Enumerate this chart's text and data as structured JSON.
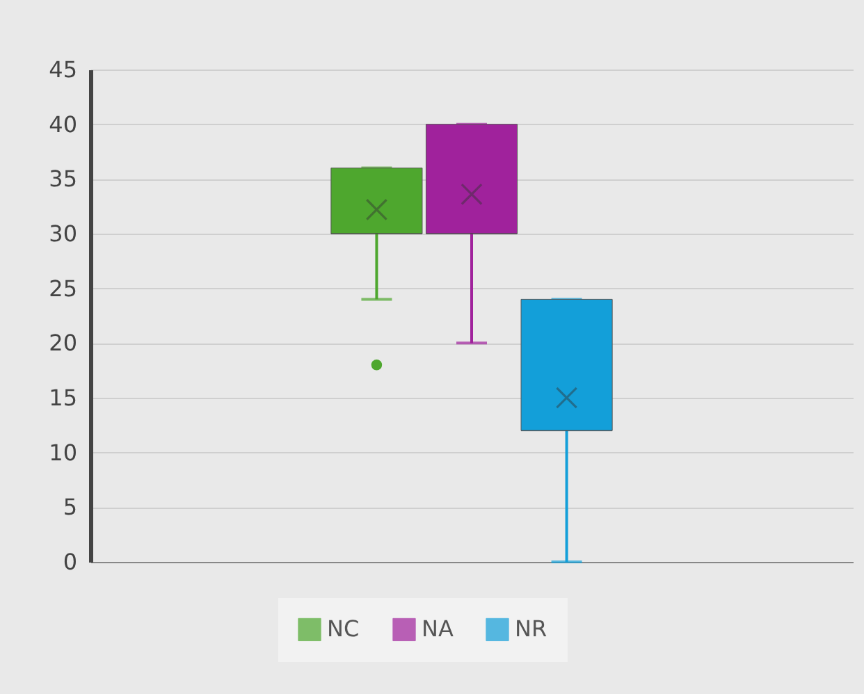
{
  "chart_data": {
    "type": "box",
    "categories": [
      null
    ],
    "series": [
      {
        "name": "NC",
        "color": "#4ea72e",
        "boxes": [
          {
            "low": 24,
            "q1": 30,
            "median": 30,
            "q3": 36,
            "high": 36,
            "mean": 32.2,
            "outliers": [
              18
            ]
          }
        ]
      },
      {
        "name": "NA",
        "color": "#a0229c",
        "boxes": [
          {
            "low": 20,
            "q1": 30,
            "median": 30,
            "q3": 40,
            "high": 40,
            "mean": 33.6
          }
        ]
      },
      {
        "name": "NR",
        "color": "#139fd9",
        "boxes": [
          {
            "low": 0,
            "q1": 12,
            "median": 12,
            "q3": 24,
            "high": 24,
            "mean": 15
          }
        ]
      }
    ],
    "ylim": [
      0,
      45
    ],
    "yticks": [
      0,
      5,
      10,
      15,
      20,
      25,
      30,
      35,
      40,
      45
    ],
    "grid": "y",
    "legend": "bottom",
    "marker": "cross"
  }
}
